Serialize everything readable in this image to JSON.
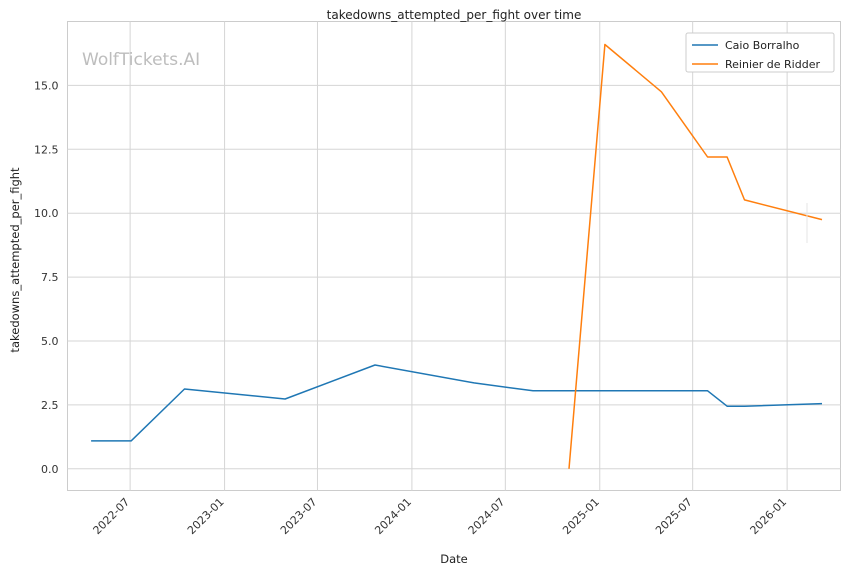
{
  "chart_data": {
    "type": "line",
    "title": "takedowns_attempted_per_fight over time",
    "xlabel": "Date",
    "ylabel": "takedowns_attempted_per_fight",
    "watermark": "WolfTickets.AI",
    "xlim": [
      "2022-03-01",
      "2026-04-15"
    ],
    "ylim": [
      -0.85,
      17.5
    ],
    "x_ticks": [
      "2022-07",
      "2023-01",
      "2023-07",
      "2024-01",
      "2024-07",
      "2025-01",
      "2025-07",
      "2026-01"
    ],
    "y_ticks": [
      "0.0",
      "2.5",
      "5.0",
      "7.5",
      "10.0",
      "12.5",
      "15.0"
    ],
    "grid": true,
    "legend_position": "top-right",
    "series": [
      {
        "name": "Caio Borralho",
        "color": "#1f77b4",
        "points": [
          {
            "x": "2022-04-16",
            "y": 1.09
          },
          {
            "x": "2022-07-03",
            "y": 1.09
          },
          {
            "x": "2022-10-15",
            "y": 3.12
          },
          {
            "x": "2023-04-29",
            "y": 2.73
          },
          {
            "x": "2023-10-21",
            "y": 4.06
          },
          {
            "x": "2024-05-01",
            "y": 3.36
          },
          {
            "x": "2024-08-24",
            "y": 3.05
          },
          {
            "x": "2025-07-30",
            "y": 3.05
          },
          {
            "x": "2025-09-06",
            "y": 2.45
          },
          {
            "x": "2025-10-10",
            "y": 2.45
          },
          {
            "x": "2026-03-10",
            "y": 2.55
          }
        ]
      },
      {
        "name": "Reinier de Ridder",
        "color": "#ff7f0e",
        "points": [
          {
            "x": "2024-11-02",
            "y": 0.0
          },
          {
            "x": "2025-01-11",
            "y": 16.6
          },
          {
            "x": "2025-05-01",
            "y": 14.75
          },
          {
            "x": "2025-07-30",
            "y": 12.2
          },
          {
            "x": "2025-09-06",
            "y": 12.2
          },
          {
            "x": "2025-10-10",
            "y": 10.52
          },
          {
            "x": "2026-03-10",
            "y": 9.75
          }
        ]
      }
    ]
  }
}
